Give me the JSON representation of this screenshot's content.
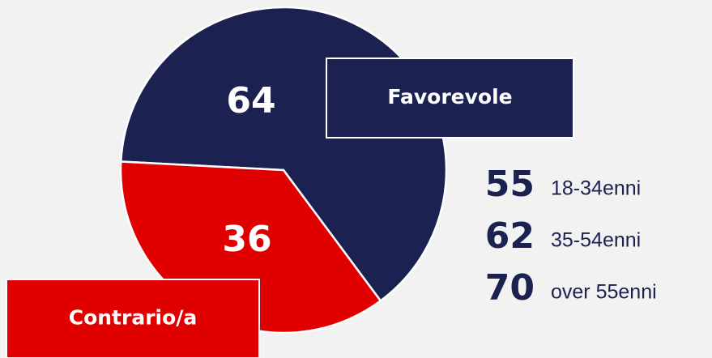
{
  "chart_data": {
    "type": "pie",
    "categories": [
      "Favorevole",
      "Contrario/a"
    ],
    "values": [
      64,
      36
    ],
    "colors": [
      "#1b2150",
      "#e00000"
    ],
    "breakdown": [
      {
        "value": 55,
        "label": "18-34enni"
      },
      {
        "value": 62,
        "label": "35-54enni"
      },
      {
        "value": 70,
        "label": "over 55enni"
      }
    ]
  }
}
